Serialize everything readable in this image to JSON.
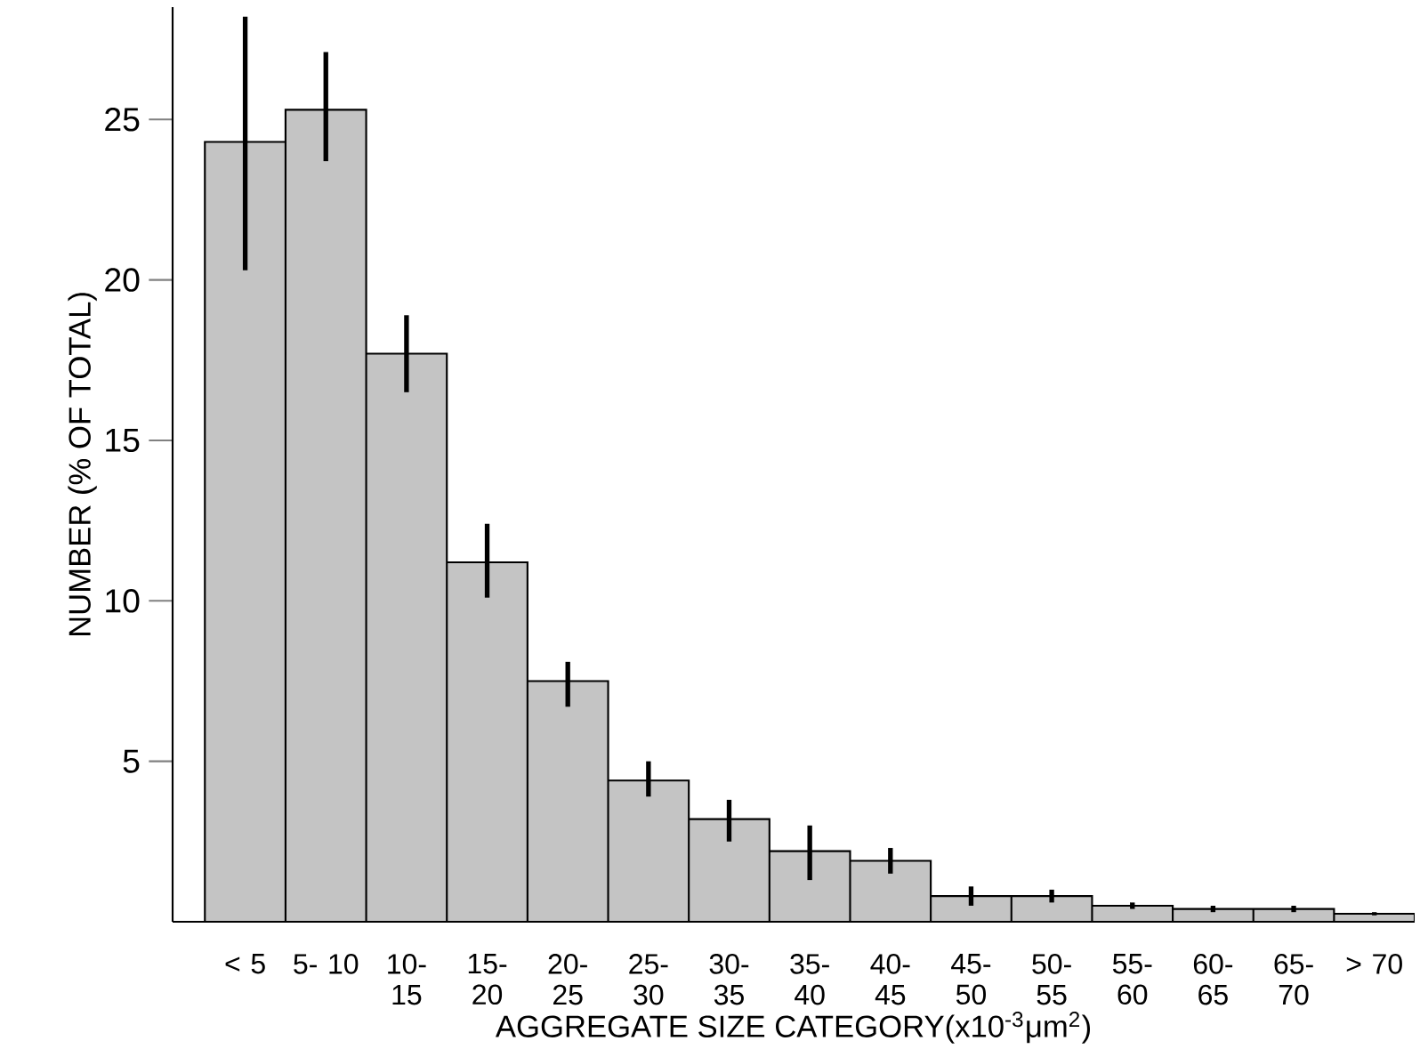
{
  "chart_data": {
    "type": "bar",
    "xlabel": "AGGREGATE SIZE CATEGORY(x10$^{-3}$μm$^{2}$)",
    "ylabel": "NUMBER (% OF TOTAL)",
    "categories": [
      "< 5",
      "5- 10",
      "10- 15",
      "15- 20",
      "20- 25",
      "25- 30",
      "30- 35",
      "35- 40",
      "40- 45",
      "45- 50",
      "50- 55",
      "55- 60",
      "60- 65",
      "65- 70",
      "> 70"
    ],
    "values": [
      24.3,
      25.3,
      17.7,
      11.2,
      7.5,
      4.4,
      3.2,
      2.2,
      1.9,
      0.8,
      0.8,
      0.5,
      0.4,
      0.4,
      0.25
    ],
    "errors": [
      [
        20.3,
        28.2
      ],
      [
        23.7,
        27.1
      ],
      [
        16.5,
        18.9
      ],
      [
        10.1,
        12.4
      ],
      [
        6.7,
        8.1
      ],
      [
        3.9,
        5.0
      ],
      [
        2.5,
        3.8
      ],
      [
        1.3,
        3.0
      ],
      [
        1.5,
        2.3
      ],
      [
        0.5,
        1.1
      ],
      [
        0.6,
        1.0
      ],
      [
        0.4,
        0.6
      ],
      [
        0.3,
        0.5
      ],
      [
        0.3,
        0.5
      ],
      [
        0.2,
        0.3
      ]
    ],
    "color": "#c4c4c4",
    "ylim": [
      0,
      28.5
    ],
    "yticks": [
      5,
      10,
      15,
      20,
      25
    ]
  }
}
